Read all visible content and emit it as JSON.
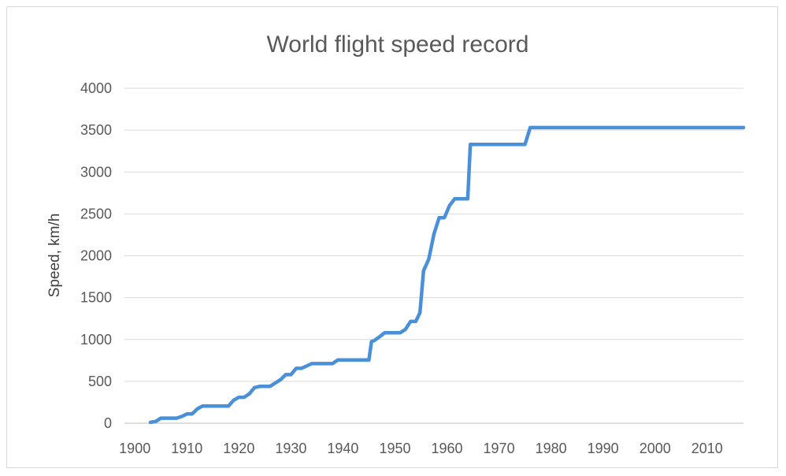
{
  "chart_data": {
    "type": "line",
    "title": "World flight speed record",
    "xlabel": "",
    "ylabel": "Speed, km/h",
    "xlim": [
      1898,
      2017
    ],
    "ylim": [
      0,
      4000
    ],
    "x_ticks": [
      1900,
      1910,
      1920,
      1930,
      1940,
      1950,
      1960,
      1970,
      1980,
      1990,
      2000,
      2010
    ],
    "y_ticks": [
      0,
      500,
      1000,
      1500,
      2000,
      2500,
      3000,
      3500,
      4000
    ],
    "grid": "horizontal",
    "color": "#4a90d9",
    "series": [
      {
        "points": [
          [
            1903,
            10
          ],
          [
            1904,
            20
          ],
          [
            1905,
            60
          ],
          [
            1908,
            60
          ],
          [
            1909,
            80
          ],
          [
            1910,
            110
          ],
          [
            1911,
            110
          ],
          [
            1912,
            170
          ],
          [
            1913,
            205
          ],
          [
            1918,
            205
          ],
          [
            1919,
            275
          ],
          [
            1920,
            310
          ],
          [
            1921,
            310
          ],
          [
            1922,
            350
          ],
          [
            1923,
            425
          ],
          [
            1924,
            440
          ],
          [
            1926,
            440
          ],
          [
            1927,
            480
          ],
          [
            1928,
            520
          ],
          [
            1929,
            580
          ],
          [
            1930,
            580
          ],
          [
            1931,
            655
          ],
          [
            1932,
            655
          ],
          [
            1933,
            682
          ],
          [
            1934,
            712
          ],
          [
            1938,
            712
          ],
          [
            1939,
            755
          ],
          [
            1945,
            755
          ],
          [
            1945.5,
            975
          ],
          [
            1946,
            985
          ],
          [
            1947,
            1030
          ],
          [
            1948,
            1080
          ],
          [
            1951,
            1080
          ],
          [
            1952,
            1120
          ],
          [
            1953,
            1215
          ],
          [
            1954,
            1215
          ],
          [
            1954.8,
            1320
          ],
          [
            1955.5,
            1820
          ],
          [
            1956.5,
            1960
          ],
          [
            1957.5,
            2260
          ],
          [
            1958.5,
            2455
          ],
          [
            1959.5,
            2455
          ],
          [
            1960.5,
            2600
          ],
          [
            1961.5,
            2680
          ],
          [
            1964,
            2680
          ],
          [
            1964.5,
            3330
          ],
          [
            1975,
            3330
          ],
          [
            1976,
            3530
          ],
          [
            2017,
            3530
          ]
        ]
      }
    ]
  }
}
